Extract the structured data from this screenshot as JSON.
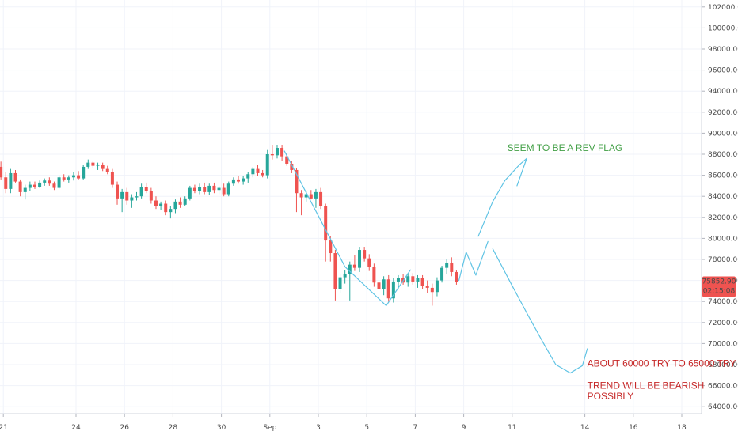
{
  "chart_data": {
    "type": "candlestick",
    "grid": true,
    "ylim": [
      62500,
      103000
    ],
    "y_ticks": [
      "102000.00",
      "100000.00",
      "98000.00",
      "96000.00",
      "94000.00",
      "92000.00",
      "90000.00",
      "88000.00",
      "86000.00",
      "84000.00",
      "82000.00",
      "80000.00",
      "78000.00",
      "76000.00",
      "74000.00",
      "72000.00",
      "70000.00",
      "68000.00",
      "66000.00",
      "64000.00"
    ],
    "x_ticks": [
      {
        "label": "21",
        "day": 21
      },
      {
        "label": "24",
        "day": 24
      },
      {
        "label": "26",
        "day": 26
      },
      {
        "label": "28",
        "day": 28
      },
      {
        "label": "30",
        "day": 30
      },
      {
        "label": "Sep",
        "day": 32
      },
      {
        "label": "3",
        "day": 34
      },
      {
        "label": "5",
        "day": 36
      },
      {
        "label": "7",
        "day": 38
      },
      {
        "label": "9",
        "day": 40
      },
      {
        "label": "11",
        "day": 42
      },
      {
        "label": "14",
        "day": 45
      },
      {
        "label": "16",
        "day": 47
      },
      {
        "label": "18",
        "day": 49
      }
    ],
    "price_badge": {
      "price": "75852.90",
      "countdown": "02:15:08",
      "value": 75852.9,
      "color": "#ef5350"
    },
    "colors": {
      "up": "#26a69a",
      "down": "#ef5350",
      "line": "#5fc3e4",
      "green_text": "#43a047",
      "red_text": "#c62828"
    },
    "candles": [
      {
        "day": 20.9,
        "o": 86800,
        "h": 87300,
        "l": 85600,
        "c": 85800
      },
      {
        "day": 21.1,
        "o": 85800,
        "h": 86300,
        "l": 84300,
        "c": 84700
      },
      {
        "day": 21.3,
        "o": 84700,
        "h": 86600,
        "l": 84300,
        "c": 86200
      },
      {
        "day": 21.5,
        "o": 86200,
        "h": 86500,
        "l": 85300,
        "c": 85400
      },
      {
        "day": 21.7,
        "o": 85400,
        "h": 85600,
        "l": 84000,
        "c": 84400
      },
      {
        "day": 21.9,
        "o": 84400,
        "h": 85100,
        "l": 83700,
        "c": 84800
      },
      {
        "day": 22.1,
        "o": 84800,
        "h": 85400,
        "l": 84500,
        "c": 85100
      },
      {
        "day": 22.3,
        "o": 85100,
        "h": 85400,
        "l": 84700,
        "c": 84900
      },
      {
        "day": 22.5,
        "o": 84900,
        "h": 85500,
        "l": 84800,
        "c": 85300
      },
      {
        "day": 22.7,
        "o": 85300,
        "h": 85700,
        "l": 85000,
        "c": 85500
      },
      {
        "day": 22.9,
        "o": 85500,
        "h": 85800,
        "l": 85000,
        "c": 85200
      },
      {
        "day": 23.1,
        "o": 85200,
        "h": 85400,
        "l": 84600,
        "c": 84800
      },
      {
        "day": 23.3,
        "o": 84800,
        "h": 86000,
        "l": 84700,
        "c": 85800
      },
      {
        "day": 23.5,
        "o": 85800,
        "h": 86100,
        "l": 85400,
        "c": 85600
      },
      {
        "day": 23.7,
        "o": 85600,
        "h": 86000,
        "l": 85300,
        "c": 85800
      },
      {
        "day": 23.9,
        "o": 85800,
        "h": 86300,
        "l": 85500,
        "c": 86000
      },
      {
        "day": 24.1,
        "o": 86000,
        "h": 86400,
        "l": 85600,
        "c": 85700
      },
      {
        "day": 24.3,
        "o": 85700,
        "h": 87000,
        "l": 85600,
        "c": 86800
      },
      {
        "day": 24.5,
        "o": 86800,
        "h": 87500,
        "l": 86600,
        "c": 87200
      },
      {
        "day": 24.7,
        "o": 87200,
        "h": 87400,
        "l": 86700,
        "c": 86900
      },
      {
        "day": 24.9,
        "o": 86900,
        "h": 87200,
        "l": 86500,
        "c": 87000
      },
      {
        "day": 25.1,
        "o": 87000,
        "h": 87200,
        "l": 86400,
        "c": 86600
      },
      {
        "day": 25.3,
        "o": 86600,
        "h": 86900,
        "l": 86100,
        "c": 86300
      },
      {
        "day": 25.5,
        "o": 86300,
        "h": 86600,
        "l": 84800,
        "c": 85100
      },
      {
        "day": 25.7,
        "o": 85100,
        "h": 85400,
        "l": 83200,
        "c": 83800
      },
      {
        "day": 25.9,
        "o": 83800,
        "h": 84700,
        "l": 82500,
        "c": 84400
      },
      {
        "day": 26.1,
        "o": 84400,
        "h": 84800,
        "l": 83200,
        "c": 83600
      },
      {
        "day": 26.3,
        "o": 83600,
        "h": 84200,
        "l": 82900,
        "c": 83900
      },
      {
        "day": 26.5,
        "o": 83900,
        "h": 84400,
        "l": 83600,
        "c": 84000
      },
      {
        "day": 26.7,
        "o": 84000,
        "h": 85200,
        "l": 83800,
        "c": 84900
      },
      {
        "day": 26.9,
        "o": 84900,
        "h": 85300,
        "l": 84300,
        "c": 84500
      },
      {
        "day": 27.1,
        "o": 84500,
        "h": 84800,
        "l": 83300,
        "c": 83600
      },
      {
        "day": 27.3,
        "o": 83600,
        "h": 84000,
        "l": 82800,
        "c": 83100
      },
      {
        "day": 27.5,
        "o": 83100,
        "h": 83500,
        "l": 82700,
        "c": 83300
      },
      {
        "day": 27.7,
        "o": 83300,
        "h": 83600,
        "l": 82200,
        "c": 82500
      },
      {
        "day": 27.9,
        "o": 82500,
        "h": 83100,
        "l": 81900,
        "c": 82800
      },
      {
        "day": 28.1,
        "o": 82800,
        "h": 83700,
        "l": 82400,
        "c": 83500
      },
      {
        "day": 28.3,
        "o": 83500,
        "h": 83900,
        "l": 82900,
        "c": 83200
      },
      {
        "day": 28.5,
        "o": 83200,
        "h": 84000,
        "l": 83100,
        "c": 83800
      },
      {
        "day": 28.7,
        "o": 83800,
        "h": 85000,
        "l": 83600,
        "c": 84800
      },
      {
        "day": 28.9,
        "o": 84800,
        "h": 85100,
        "l": 84300,
        "c": 84500
      },
      {
        "day": 29.1,
        "o": 84500,
        "h": 85200,
        "l": 84200,
        "c": 84900
      },
      {
        "day": 29.3,
        "o": 84900,
        "h": 85300,
        "l": 84200,
        "c": 84400
      },
      {
        "day": 29.5,
        "o": 84400,
        "h": 85200,
        "l": 84100,
        "c": 85000
      },
      {
        "day": 29.7,
        "o": 85000,
        "h": 85300,
        "l": 84300,
        "c": 84600
      },
      {
        "day": 29.9,
        "o": 84600,
        "h": 85000,
        "l": 84200,
        "c": 84800
      },
      {
        "day": 30.1,
        "o": 84800,
        "h": 85200,
        "l": 84000,
        "c": 84200
      },
      {
        "day": 30.3,
        "o": 84200,
        "h": 85400,
        "l": 84000,
        "c": 85200
      },
      {
        "day": 30.5,
        "o": 85200,
        "h": 85800,
        "l": 85000,
        "c": 85600
      },
      {
        "day": 30.7,
        "o": 85600,
        "h": 85900,
        "l": 85200,
        "c": 85400
      },
      {
        "day": 30.9,
        "o": 85400,
        "h": 85900,
        "l": 85100,
        "c": 85700
      },
      {
        "day": 31.1,
        "o": 85700,
        "h": 86300,
        "l": 85300,
        "c": 86100
      },
      {
        "day": 31.3,
        "o": 86100,
        "h": 86800,
        "l": 85800,
        "c": 86600
      },
      {
        "day": 31.5,
        "o": 86600,
        "h": 87000,
        "l": 85900,
        "c": 86200
      },
      {
        "day": 31.7,
        "o": 86200,
        "h": 86500,
        "l": 85800,
        "c": 86000
      },
      {
        "day": 31.9,
        "o": 86000,
        "h": 88400,
        "l": 85700,
        "c": 88000
      },
      {
        "day": 32.1,
        "o": 88000,
        "h": 88900,
        "l": 87500,
        "c": 87900
      },
      {
        "day": 32.3,
        "o": 87900,
        "h": 88900,
        "l": 87600,
        "c": 88600
      },
      {
        "day": 32.5,
        "o": 88600,
        "h": 88900,
        "l": 87400,
        "c": 87800
      },
      {
        "day": 32.7,
        "o": 87800,
        "h": 88100,
        "l": 86900,
        "c": 87100
      },
      {
        "day": 32.9,
        "o": 87100,
        "h": 87400,
        "l": 86200,
        "c": 86500
      },
      {
        "day": 33.1,
        "o": 86500,
        "h": 86700,
        "l": 82500,
        "c": 84300
      },
      {
        "day": 33.3,
        "o": 84300,
        "h": 84600,
        "l": 82200,
        "c": 83900
      },
      {
        "day": 33.5,
        "o": 83900,
        "h": 84500,
        "l": 83500,
        "c": 84200
      },
      {
        "day": 33.7,
        "o": 84200,
        "h": 84600,
        "l": 83700,
        "c": 83800
      },
      {
        "day": 33.9,
        "o": 83800,
        "h": 84700,
        "l": 82900,
        "c": 84400
      },
      {
        "day": 34.1,
        "o": 84400,
        "h": 84800,
        "l": 82800,
        "c": 83100
      },
      {
        "day": 34.3,
        "o": 83100,
        "h": 83300,
        "l": 77800,
        "c": 79800
      },
      {
        "day": 34.5,
        "o": 79800,
        "h": 80200,
        "l": 77800,
        "c": 78600
      },
      {
        "day": 34.7,
        "o": 78600,
        "h": 78900,
        "l": 74100,
        "c": 75200
      },
      {
        "day": 34.9,
        "o": 75200,
        "h": 76600,
        "l": 74800,
        "c": 76300
      },
      {
        "day": 35.1,
        "o": 76300,
        "h": 77000,
        "l": 75700,
        "c": 76600
      },
      {
        "day": 35.3,
        "o": 76600,
        "h": 77800,
        "l": 74100,
        "c": 77500
      },
      {
        "day": 35.5,
        "o": 77500,
        "h": 78400,
        "l": 76900,
        "c": 77200
      },
      {
        "day": 35.7,
        "o": 77200,
        "h": 79200,
        "l": 76800,
        "c": 78900
      },
      {
        "day": 35.9,
        "o": 78900,
        "h": 79200,
        "l": 77800,
        "c": 78100
      },
      {
        "day": 36.1,
        "o": 78100,
        "h": 78500,
        "l": 76900,
        "c": 77300
      },
      {
        "day": 36.3,
        "o": 77300,
        "h": 77600,
        "l": 75400,
        "c": 75800
      },
      {
        "day": 36.5,
        "o": 75800,
        "h": 76300,
        "l": 74900,
        "c": 75200
      },
      {
        "day": 36.7,
        "o": 75200,
        "h": 76400,
        "l": 74600,
        "c": 76100
      },
      {
        "day": 36.9,
        "o": 76100,
        "h": 76500,
        "l": 73900,
        "c": 74300
      },
      {
        "day": 37.1,
        "o": 74300,
        "h": 76200,
        "l": 73900,
        "c": 75900
      },
      {
        "day": 37.3,
        "o": 75900,
        "h": 76500,
        "l": 75200,
        "c": 76200
      },
      {
        "day": 37.5,
        "o": 76200,
        "h": 76600,
        "l": 75600,
        "c": 75800
      },
      {
        "day": 37.7,
        "o": 75800,
        "h": 76700,
        "l": 75400,
        "c": 76400
      },
      {
        "day": 37.9,
        "o": 76400,
        "h": 76700,
        "l": 75600,
        "c": 75900
      },
      {
        "day": 38.1,
        "o": 75900,
        "h": 76500,
        "l": 75300,
        "c": 76200
      },
      {
        "day": 38.3,
        "o": 76200,
        "h": 76500,
        "l": 75200,
        "c": 75500
      },
      {
        "day": 38.5,
        "o": 75500,
        "h": 76000,
        "l": 74800,
        "c": 75300
      },
      {
        "day": 38.7,
        "o": 75300,
        "h": 75700,
        "l": 73600,
        "c": 74900
      },
      {
        "day": 38.9,
        "o": 74900,
        "h": 76300,
        "l": 74500,
        "c": 76000
      },
      {
        "day": 39.1,
        "o": 76000,
        "h": 77400,
        "l": 75800,
        "c": 77200
      },
      {
        "day": 39.3,
        "o": 77200,
        "h": 78000,
        "l": 76600,
        "c": 77700
      },
      {
        "day": 39.5,
        "o": 77700,
        "h": 78200,
        "l": 76400,
        "c": 76800
      },
      {
        "day": 39.7,
        "o": 76800,
        "h": 77000,
        "l": 75600,
        "c": 75853
      }
    ],
    "drawings": [
      {
        "name": "downtrend-line",
        "points": [
          [
            32.6,
            88300
          ],
          [
            35.1,
            77300
          ],
          [
            36.8,
            73600
          ]
        ]
      },
      {
        "name": "flag-line",
        "points": [
          [
            36.8,
            73600
          ],
          [
            37.8,
            77000
          ]
        ]
      },
      {
        "name": "bullish-projection",
        "points": [
          [
            39.8,
            76000
          ],
          [
            40.1,
            78700
          ],
          [
            40.5,
            76500
          ],
          [
            41.0,
            79700
          ]
        ]
      },
      {
        "name": "rally-curve",
        "points": [
          [
            40.6,
            80200
          ],
          [
            41.2,
            83500
          ],
          [
            41.7,
            85500
          ],
          [
            42.3,
            87000
          ],
          [
            42.6,
            87600
          ],
          [
            42.2,
            85000
          ]
        ]
      },
      {
        "name": "bearish-projection",
        "points": [
          [
            41.2,
            79000
          ],
          [
            42.0,
            75500
          ],
          [
            42.7,
            72500
          ],
          [
            43.3,
            70000
          ],
          [
            43.8,
            68000
          ],
          [
            44.4,
            67200
          ],
          [
            44.9,
            67900
          ],
          [
            45.1,
            69500
          ]
        ]
      }
    ],
    "annotations": [
      {
        "text": "SEEM TO BE A REV FLAG",
        "color": "#43a047",
        "day": 41.8,
        "price": 88300
      },
      {
        "text": "ABOUT 60000 TRY TO 65000 TRY",
        "color": "#c62828",
        "day": 45.1,
        "price": 67800
      },
      {
        "text": "TREND WILL BE BEARISH",
        "color": "#c62828",
        "day": 45.1,
        "price": 65700
      },
      {
        "text": "POSSIBLY",
        "color": "#c62828",
        "day": 45.1,
        "price": 64700
      }
    ]
  }
}
